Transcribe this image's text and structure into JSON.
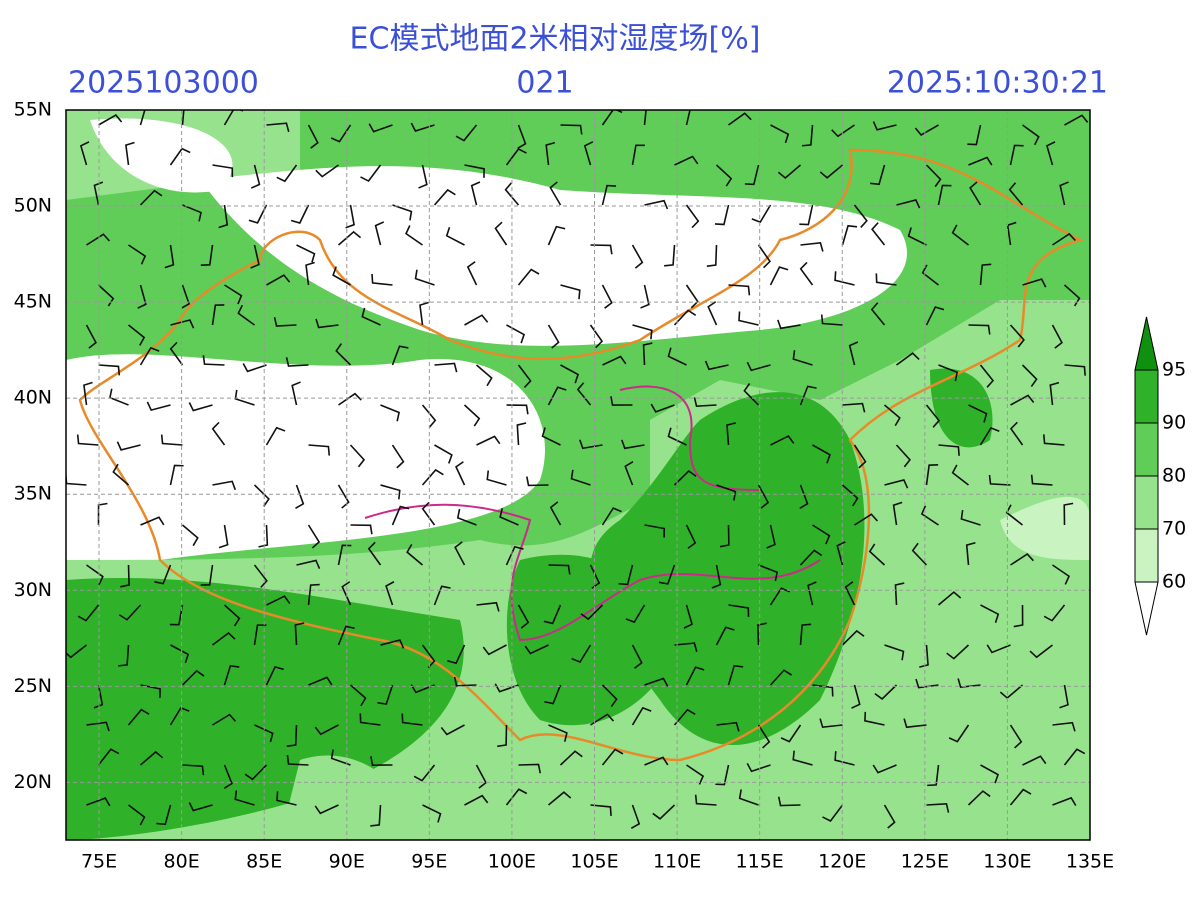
{
  "title": "EC模式地面2米相对湿度场[%]",
  "init_time": "2025103000",
  "forecast_hour": "021",
  "valid_time": "2025:10:30:21",
  "map": {
    "xlim": [
      73,
      135
    ],
    "ylim": [
      17,
      55
    ],
    "xticks": [
      {
        "value": 75,
        "label": "75E"
      },
      {
        "value": 80,
        "label": "80E"
      },
      {
        "value": 85,
        "label": "85E"
      },
      {
        "value": 90,
        "label": "90E"
      },
      {
        "value": 95,
        "label": "95E"
      },
      {
        "value": 100,
        "label": "100E"
      },
      {
        "value": 105,
        "label": "105E"
      },
      {
        "value": 110,
        "label": "110E"
      },
      {
        "value": 115,
        "label": "115E"
      },
      {
        "value": 120,
        "label": "120E"
      },
      {
        "value": 125,
        "label": "125E"
      },
      {
        "value": 130,
        "label": "130E"
      },
      {
        "value": 135,
        "label": "135E"
      }
    ],
    "yticks": [
      {
        "value": 20,
        "label": "20N"
      },
      {
        "value": 25,
        "label": "25N"
      },
      {
        "value": 30,
        "label": "30N"
      },
      {
        "value": 35,
        "label": "35N"
      },
      {
        "value": 40,
        "label": "40N"
      },
      {
        "value": 45,
        "label": "45N"
      },
      {
        "value": 50,
        "label": "50N"
      },
      {
        "value": 55,
        "label": "55N"
      }
    ],
    "grid": true
  },
  "colorbar": {
    "levels": [
      60,
      70,
      80,
      90,
      95
    ],
    "colors": [
      "#ffffff",
      "#c9f3c1",
      "#97e38d",
      "#5fcd57",
      "#2fb12a",
      "#0f900f"
    ]
  }
}
